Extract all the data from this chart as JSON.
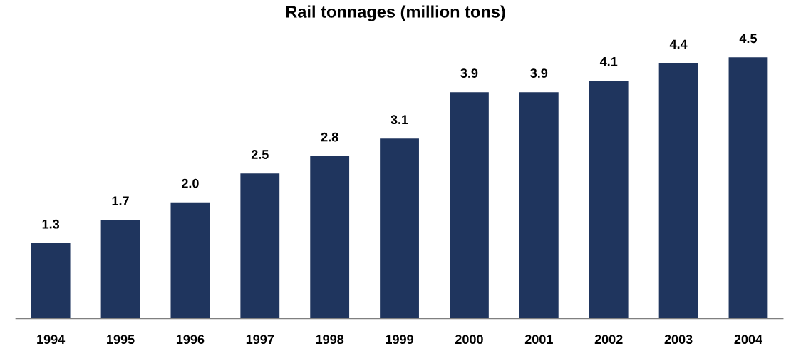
{
  "chart_data": {
    "type": "bar",
    "title": "Rail tonnages (million tons)",
    "categories": [
      "1994",
      "1995",
      "1996",
      "1997",
      "1998",
      "1999",
      "2000",
      "2001",
      "2002",
      "2003",
      "2004"
    ],
    "values": [
      1.3,
      1.7,
      2.0,
      2.5,
      2.8,
      3.1,
      3.9,
      3.9,
      4.1,
      4.4,
      4.5
    ],
    "value_labels": [
      "1.3",
      "1.7",
      "2.0",
      "2.5",
      "2.8",
      "3.1",
      "3.9",
      "3.9",
      "4.1",
      "4.4",
      "4.5"
    ],
    "color": "#1f355e",
    "tick_labels": "x",
    "grid": false,
    "legend": false
  }
}
